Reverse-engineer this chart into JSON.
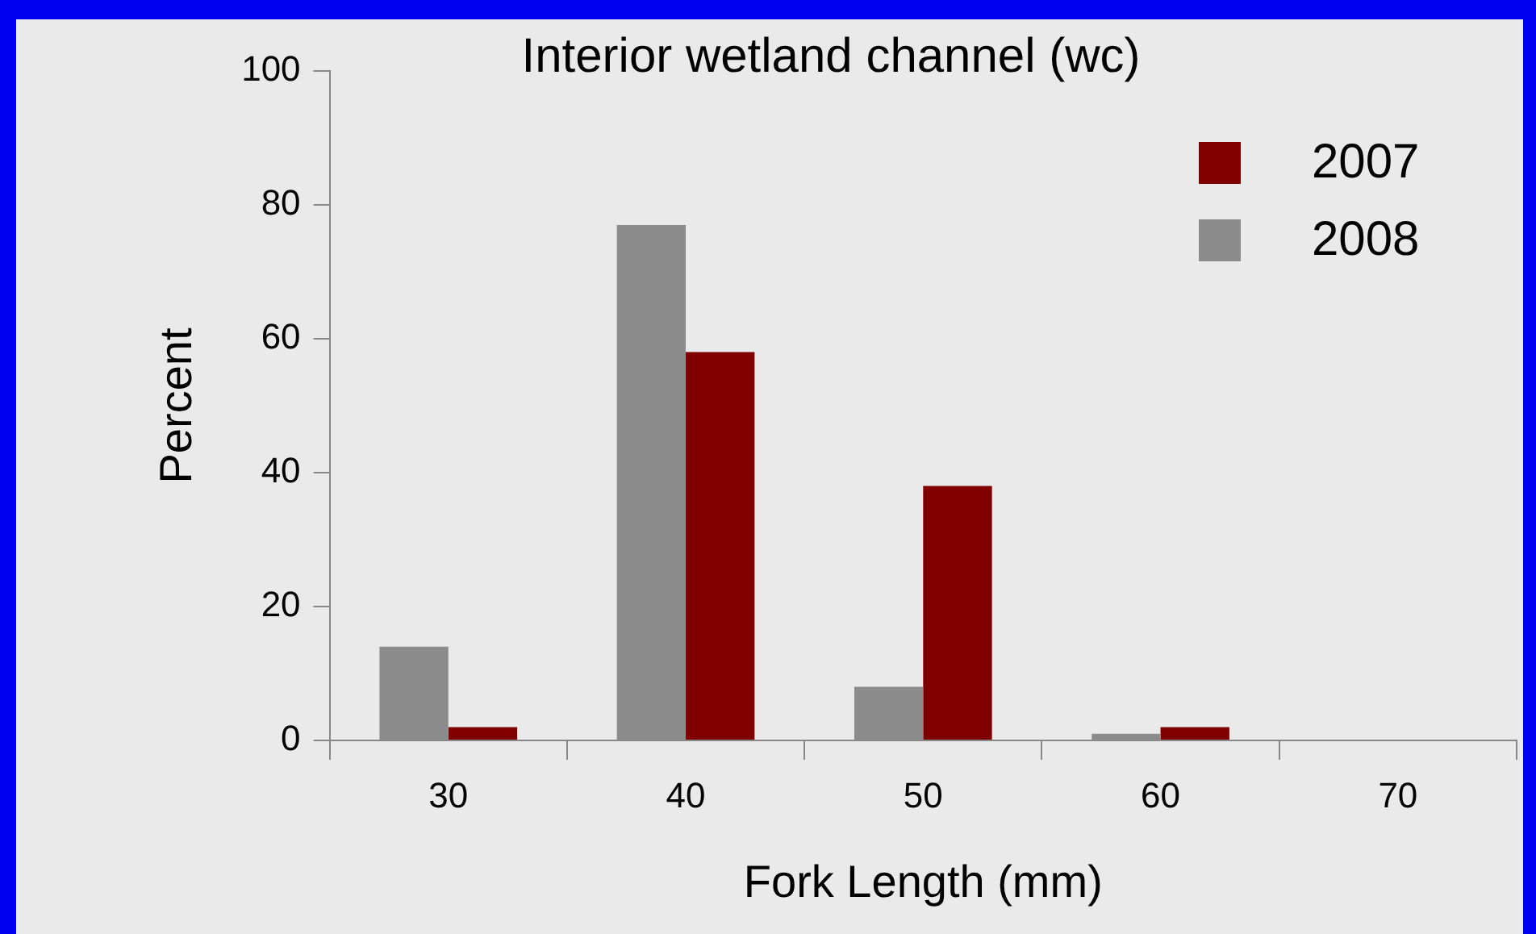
{
  "chart_data": {
    "type": "bar",
    "title": "Interior wetland channel (wc)",
    "xlabel": "Fork Length (mm)",
    "ylabel": "Percent",
    "categories": [
      "30",
      "40",
      "50",
      "60",
      "70"
    ],
    "series": [
      {
        "name": "2008",
        "color": "#8c8c8c",
        "values": [
          14,
          77,
          8,
          1,
          0
        ]
      },
      {
        "name": "2007",
        "color": "#800000",
        "values": [
          2,
          58,
          38,
          2,
          0
        ]
      }
    ],
    "ylim": [
      0,
      100
    ],
    "yticks": [
      0,
      20,
      40,
      60,
      80,
      100
    ],
    "grid": false,
    "legend": "top right"
  }
}
